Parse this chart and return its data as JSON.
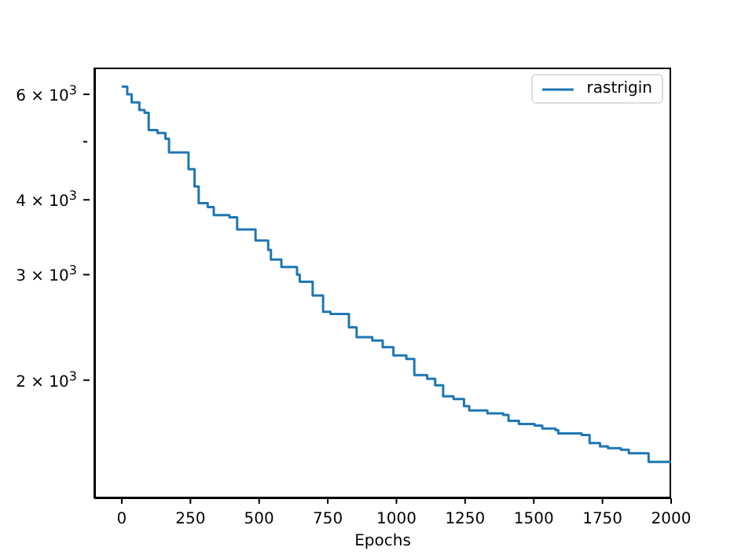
{
  "chart_data": {
    "type": "step",
    "xlabel": "Epochs",
    "log": "y",
    "grid": false,
    "legend": "top right",
    "marker": "none",
    "line_style": "solid",
    "xlim": [
      -100,
      2000
    ],
    "xticks": [
      0,
      250,
      500,
      750,
      1000,
      1250,
      1500,
      1750,
      2000
    ],
    "ylim": [
      1270,
      6650
    ],
    "yticks": [
      {
        "value": 2000,
        "label": "2 × 10$^{3}$"
      },
      {
        "value": 3000,
        "label": "3 × 10$^{3}$"
      },
      {
        "value": 4000,
        "label": "4 × 10$^{3}$"
      },
      {
        "value": 5000,
        "label": null
      },
      {
        "value": 6000,
        "label": "6 × 10$^{3}$"
      }
    ],
    "x": [
      0,
      20,
      36,
      64,
      83,
      98,
      130,
      159,
      172,
      216,
      243,
      265,
      280,
      313,
      335,
      392,
      420,
      449,
      487,
      533,
      543,
      581,
      638,
      648,
      695,
      733,
      760,
      808,
      827,
      855,
      912,
      950,
      989,
      1036,
      1065,
      1112,
      1141,
      1170,
      1208,
      1246,
      1265,
      1331,
      1389,
      1408,
      1446,
      1503,
      1531,
      1579,
      1589,
      1674,
      1703,
      1741,
      1770,
      1817,
      1846,
      1918,
      2000
    ],
    "series": [
      {
        "name": "rastrigin",
        "color": "#1f77b4",
        "values": [
          6180,
          6000,
          5820,
          5650,
          5590,
          5230,
          5170,
          5060,
          4800,
          4800,
          4500,
          4210,
          3950,
          3890,
          3770,
          3740,
          3570,
          3570,
          3420,
          3300,
          3180,
          3090,
          3000,
          2920,
          2770,
          2600,
          2580,
          2580,
          2450,
          2360,
          2330,
          2270,
          2200,
          2170,
          2040,
          2010,
          1960,
          1880,
          1860,
          1810,
          1780,
          1760,
          1750,
          1710,
          1690,
          1680,
          1660,
          1650,
          1630,
          1620,
          1570,
          1550,
          1540,
          1530,
          1510,
          1460,
          1460
        ]
      }
    ]
  }
}
